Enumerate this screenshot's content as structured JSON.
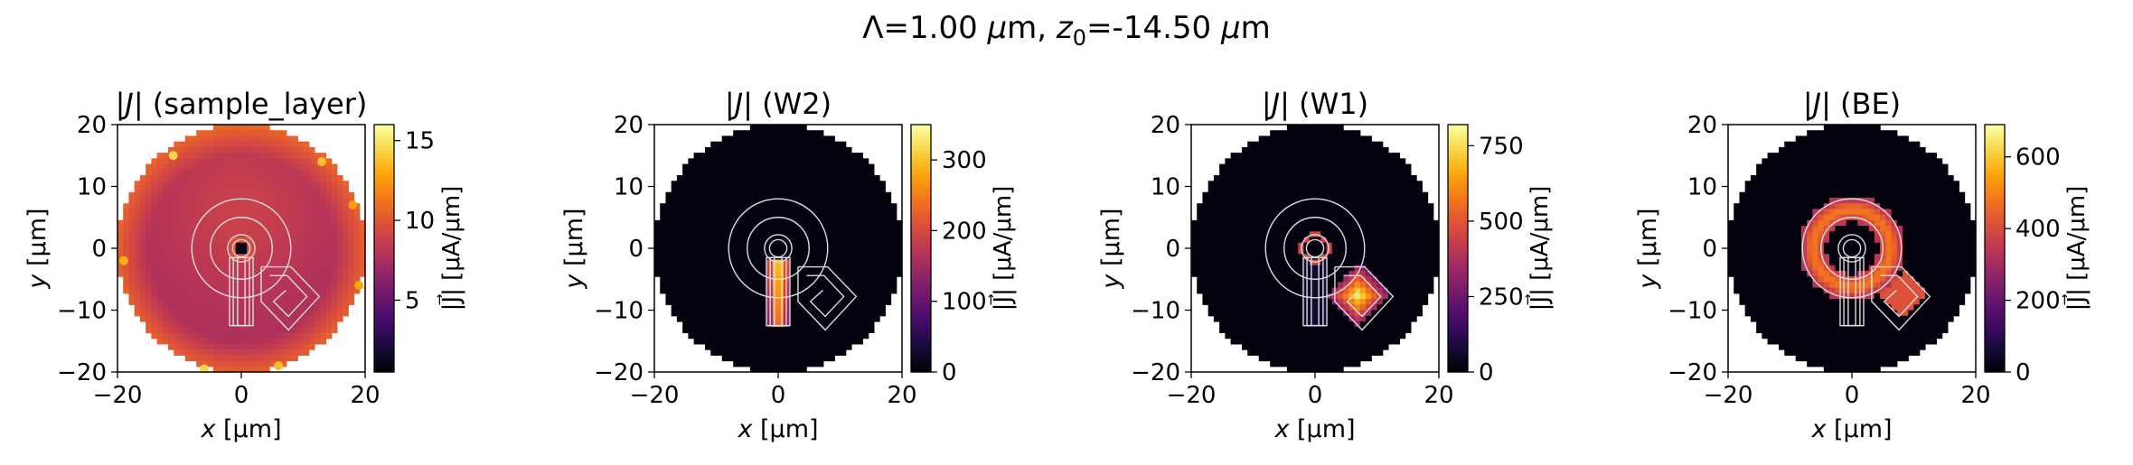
{
  "figure": {
    "suptitle_prefix": "Λ=1.00 ",
    "suptitle_mu1": "μ",
    "suptitle_m1": "m, ",
    "suptitle_z": "z",
    "suptitle_zsub": "0",
    "suptitle_rest": "=-14.50 ",
    "suptitle_mu2": "μ",
    "suptitle_m2": "m"
  },
  "chart_data": [
    {
      "type": "heatmap",
      "title": "|J⃗| (sample_layer)",
      "title_prefix": "|",
      "title_J": "J",
      "title_suffix": "| (sample_layer)",
      "xlabel_var": "x",
      "xlabel_unit": " [μm]",
      "ylabel_var": "y",
      "ylabel_unit": " [μm]",
      "xlim": [
        -20,
        20
      ],
      "ylim": [
        -20,
        20
      ],
      "xticks": [
        -20,
        0,
        20
      ],
      "yticks": [
        -20,
        -10,
        0,
        10,
        20
      ],
      "colormap": "inferno",
      "colorbar": {
        "label": "|J⃗| [μA/μm]",
        "range": [
          0.5,
          16
        ],
        "ticks": [
          5,
          10,
          15
        ]
      },
      "field": {
        "background_level": 0.48,
        "edge_level": 0.7,
        "hotspot_level": 0.88,
        "hole_level": 0.05,
        "pattern": "sample"
      }
    },
    {
      "type": "heatmap",
      "title": "|J⃗| (W2)",
      "title_prefix": "|",
      "title_J": "J",
      "title_suffix": "| (W2)",
      "xlabel_var": "x",
      "xlabel_unit": " [μm]",
      "ylabel_var": "y",
      "ylabel_unit": " [μm]",
      "xlim": [
        -20,
        20
      ],
      "ylim": [
        -20,
        20
      ],
      "xticks": [
        -20,
        0,
        20
      ],
      "yticks": [
        -20,
        -10,
        0,
        10,
        20
      ],
      "colormap": "inferno",
      "colorbar": {
        "label": "|J⃗| [μA/μm]",
        "range": [
          0,
          350
        ],
        "ticks": [
          0,
          100,
          200,
          300
        ]
      },
      "field": {
        "pattern": "strip",
        "peak_level": 0.95
      }
    },
    {
      "type": "heatmap",
      "title": "|J⃗| (W1)",
      "title_prefix": "|",
      "title_J": "J",
      "title_suffix": "| (W1)",
      "xlabel_var": "x",
      "xlabel_unit": " [μm]",
      "ylabel_var": "y",
      "ylabel_unit": " [μm]",
      "xlim": [
        -20,
        20
      ],
      "ylim": [
        -20,
        20
      ],
      "xticks": [
        -20,
        0,
        20
      ],
      "yticks": [
        -20,
        -10,
        0,
        10,
        20
      ],
      "colormap": "inferno",
      "colorbar": {
        "label": "|J⃗| [μA/μm]",
        "range": [
          0,
          820
        ],
        "ticks": [
          0,
          250,
          500,
          750
        ]
      },
      "field": {
        "pattern": "diamond",
        "peak_level": 0.97
      }
    },
    {
      "type": "heatmap",
      "title": "|J⃗| (BE)",
      "title_prefix": "|",
      "title_J": "J",
      "title_suffix": "| (BE)",
      "xlabel_var": "x",
      "xlabel_unit": " [μm]",
      "ylabel_var": "y",
      "ylabel_unit": " [μm]",
      "xlim": [
        -20,
        20
      ],
      "ylim": [
        -20,
        20
      ],
      "xticks": [
        -20,
        0,
        20
      ],
      "yticks": [
        -20,
        -10,
        0,
        10,
        20
      ],
      "colormap": "inferno",
      "colorbar": {
        "label": "|J⃗| [μA/μm]",
        "range": [
          0,
          690
        ],
        "ticks": [
          0,
          200,
          400,
          600
        ]
      },
      "field": {
        "pattern": "ring",
        "peak_level": 0.7
      }
    }
  ]
}
